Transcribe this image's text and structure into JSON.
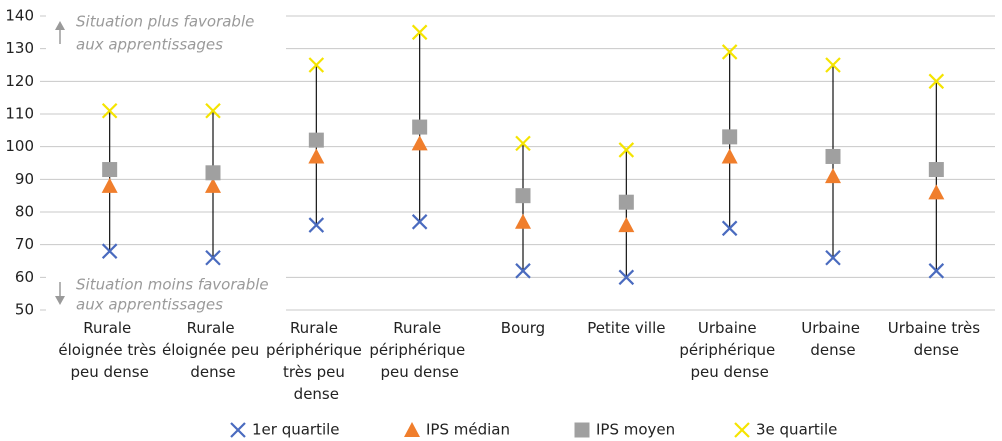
{
  "chart_data": {
    "type": "range-dot",
    "categories": [
      "Rurale éloignée très peu dense",
      "Rurale éloignée peu dense",
      "Rurale périphérique très peu dense",
      "Rurale périphérique peu dense",
      "Bourg",
      "Petite ville",
      "Urbaine périphérique peu dense",
      "Urbaine dense",
      "Urbaine très dense"
    ],
    "series": [
      {
        "name": "1er quartile",
        "color": "#4a6bbf",
        "marker": "x",
        "values": [
          68,
          66,
          76,
          77,
          62,
          60,
          75,
          66,
          62
        ]
      },
      {
        "name": "IPS médian",
        "color": "#f07e2c",
        "marker": "triangle",
        "values": [
          88,
          88,
          97,
          101,
          77,
          76,
          97,
          91,
          86
        ]
      },
      {
        "name": "IPS moyen",
        "color": "#a0a0a0",
        "marker": "square",
        "values": [
          93,
          92,
          102,
          106,
          85,
          83,
          103,
          97,
          93
        ]
      },
      {
        "name": "3e quartile",
        "color": "#f5e400",
        "marker": "x",
        "values": [
          111,
          111,
          125,
          135,
          101,
          99,
          129,
          125,
          120
        ]
      }
    ],
    "annotations": [
      [
        "Situation plus favorable",
        "aux apprentissages"
      ],
      [
        "Situation moins favorable",
        "aux apprentissages"
      ]
    ],
    "ylim": [
      50,
      140
    ],
    "yticks": [
      50,
      60,
      70,
      80,
      90,
      100,
      110,
      120,
      130,
      140
    ],
    "grid": true
  }
}
